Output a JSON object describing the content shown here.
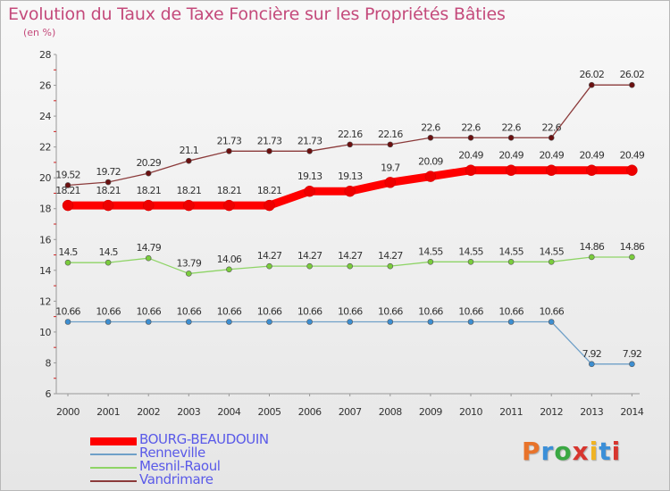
{
  "title": "Evolution du Taux de Taxe Foncière sur les Propriétés Bâties",
  "subtitle": "(en %)",
  "logo": {
    "text": "Proxiti",
    "letter_colors": [
      "#e8732a",
      "#3b8fd8",
      "#3aa843",
      "#d7352e",
      "#f0b323",
      "#3b8fd8",
      "#d7352e"
    ]
  },
  "chart_data": {
    "type": "line",
    "title": "Evolution du Taux de Taxe Foncière sur les Propriétés Bâties",
    "ylabel": "(en %)",
    "xlabel": "",
    "ylim": [
      6,
      28
    ],
    "yticks": [
      6,
      8,
      10,
      12,
      14,
      16,
      18,
      20,
      22,
      24,
      26,
      28
    ],
    "grid": false,
    "legend_position": "bottom-left",
    "x": [
      "2000",
      "2001",
      "2002",
      "2003",
      "2004",
      "2005",
      "2006",
      "2007",
      "2008",
      "2009",
      "2010",
      "2011",
      "2012",
      "2013",
      "2014"
    ],
    "series": [
      {
        "name": "Vandrimare",
        "color": "#8b3a3a",
        "marker": "#6b1010",
        "style": "thin",
        "values": [
          19.52,
          19.72,
          20.29,
          21.1,
          21.73,
          21.73,
          21.73,
          22.16,
          22.16,
          22.6,
          22.6,
          22.6,
          22.6,
          26.02,
          26.02
        ],
        "labels": [
          "19.52",
          "19.72",
          "20.29",
          "21.1",
          "21.73",
          "21.73",
          "21.73",
          "22.16",
          "22.16",
          "22.6",
          "22.6",
          "22.6",
          "22.6",
          "26.02",
          "26.02"
        ]
      },
      {
        "name": "Mesnil-Raoul",
        "color": "#8ed466",
        "marker": "#7acc3c",
        "style": "thin",
        "values": [
          14.5,
          14.5,
          14.79,
          13.79,
          14.06,
          14.27,
          14.27,
          14.27,
          14.27,
          14.55,
          14.55,
          14.55,
          14.55,
          14.86,
          14.86
        ],
        "labels": [
          "14.5",
          "14.5",
          "14.79",
          "13.79",
          "14.06",
          "14.27",
          "14.27",
          "14.27",
          "14.27",
          "14.55",
          "14.55",
          "14.55",
          "14.55",
          "14.86",
          "14.86"
        ]
      },
      {
        "name": "Renneville",
        "color": "#6fa0c8",
        "marker": "#3d8ed0",
        "style": "thin",
        "values": [
          10.66,
          10.66,
          10.66,
          10.66,
          10.66,
          10.66,
          10.66,
          10.66,
          10.66,
          10.66,
          10.66,
          10.66,
          10.66,
          7.92,
          7.92
        ],
        "labels": [
          "10.66",
          "10.66",
          "10.66",
          "10.66",
          "10.66",
          "10.66",
          "10.66",
          "10.66",
          "10.66",
          "10.66",
          "10.66",
          "10.66",
          "10.66",
          "7.92",
          "7.92"
        ]
      },
      {
        "name": "BOURG-BEAUDOUIN",
        "color": "#ff0000",
        "marker": "#ee0000",
        "style": "thick",
        "values": [
          18.21,
          18.21,
          18.21,
          18.21,
          18.21,
          18.21,
          19.13,
          19.13,
          19.7,
          20.09,
          20.49,
          20.49,
          20.49,
          20.49,
          20.49
        ],
        "labels": [
          "18.21",
          "18.21",
          "18.21",
          "18.21",
          "18.21",
          "18.21",
          "19.13",
          "19.13",
          "19.7",
          "20.09",
          "20.49",
          "20.49",
          "20.49",
          "20.49",
          "20.49"
        ]
      }
    ],
    "legend_order": [
      "BOURG-BEAUDOUIN",
      "Renneville",
      "Mesnil-Raoul",
      "Vandrimare"
    ]
  }
}
